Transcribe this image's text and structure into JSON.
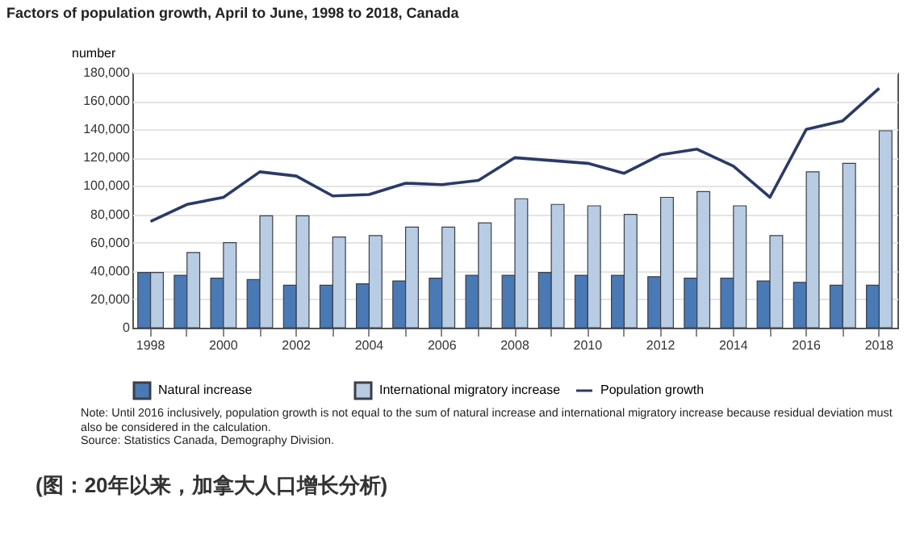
{
  "chart_data": {
    "type": "bar",
    "title": "Factors of population growth, April to June, 1998 to 2018, Canada",
    "ylabel": "number",
    "categories": [
      "1998",
      null,
      "2000",
      null,
      "2002",
      null,
      "2004",
      null,
      "2006",
      null,
      "2008",
      null,
      "2010",
      null,
      "2012",
      null,
      "2014",
      null,
      "2016",
      null,
      "2018"
    ],
    "series": [
      {
        "name": "Natural increase",
        "color": "#4a7ab5",
        "values": [
          39000,
          37000,
          35000,
          34000,
          30000,
          30000,
          31000,
          33000,
          35000,
          37000,
          37000,
          39000,
          37000,
          37000,
          36000,
          35000,
          35000,
          33000,
          32000,
          30000,
          30000
        ]
      },
      {
        "name": "International migratory increase",
        "color": "#b8cce4",
        "values": [
          39000,
          53000,
          60000,
          79000,
          79000,
          64000,
          65000,
          71000,
          71000,
          74000,
          91000,
          87000,
          86000,
          80000,
          92000,
          96000,
          86000,
          65000,
          110000,
          116000,
          139000
        ]
      },
      {
        "name": "Population growth",
        "type": "line",
        "color": "#2b3a67",
        "values": [
          75000,
          87000,
          92000,
          110000,
          107000,
          93000,
          94000,
          102000,
          101000,
          104000,
          120000,
          118000,
          116000,
          109000,
          122000,
          126000,
          114000,
          92000,
          140000,
          146000,
          169000
        ]
      }
    ],
    "ylim": [
      0,
      180000
    ],
    "yticks": [
      0,
      {
        "value": 20000,
        "label": "20,000"
      },
      {
        "value": 40000,
        "label": "40,000"
      },
      {
        "value": 60000,
        "label": "60,000"
      },
      {
        "value": 80000,
        "label": "80,000"
      },
      {
        "value": 100000,
        "label": "100,000"
      },
      {
        "value": 120000,
        "label": "120,000"
      },
      {
        "value": 140000,
        "label": "140,000"
      },
      {
        "value": 160000,
        "label": "160,000"
      },
      {
        "value": 180000,
        "label": "180,000"
      }
    ],
    "grid": "y",
    "legend": "bottom",
    "annotations": [
      "Note: Until 2016 inclusively, population growth is not equal to the sum of natural increase and international migratory increase because residual deviation must also be considered in the calculation.",
      "Source: Statistics Canada, Demography Division.",
      "(图：20年以来，加拿大人口增长分析)"
    ]
  }
}
